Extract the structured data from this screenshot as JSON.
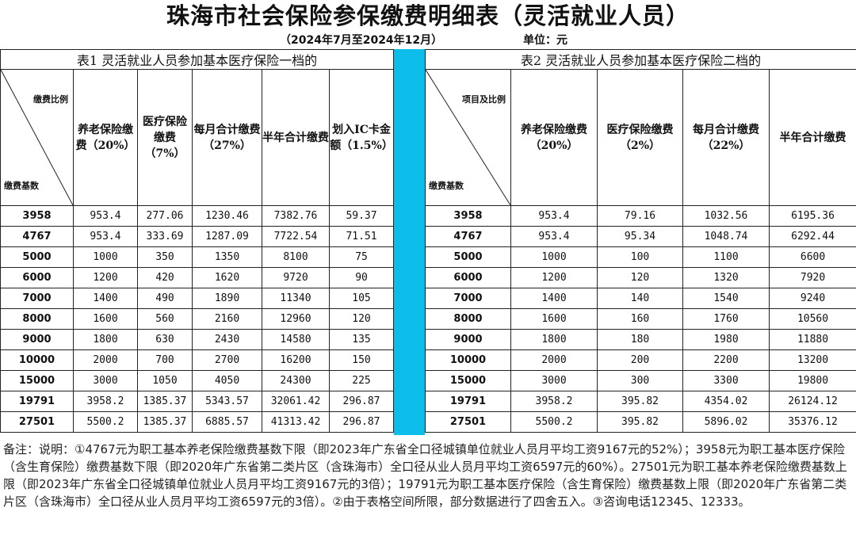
{
  "title": "珠海市社会保险参保缴费明细表（灵活就业人员）",
  "period": "（2024年7月至2024年12月）",
  "unit": "单位：元",
  "table1": {
    "caption": "表1 灵活就业人员参加基本医疗保险一档的",
    "corner_top": "缴费比例",
    "corner_bottom": "缴费基数",
    "headers": [
      "养老保险缴费（20%）",
      "医疗保险缴费（7%）",
      "每月合计缴费（27%）",
      "半年合计缴费",
      "划入IC卡金额（1.5%）"
    ],
    "rows": [
      [
        "3958",
        "953.4",
        "277.06",
        "1230.46",
        "7382.76",
        "59.37"
      ],
      [
        "4767",
        "953.4",
        "333.69",
        "1287.09",
        "7722.54",
        "71.51"
      ],
      [
        "5000",
        "1000",
        "350",
        "1350",
        "8100",
        "75"
      ],
      [
        "6000",
        "1200",
        "420",
        "1620",
        "9720",
        "90"
      ],
      [
        "7000",
        "1400",
        "490",
        "1890",
        "11340",
        "105"
      ],
      [
        "8000",
        "1600",
        "560",
        "2160",
        "12960",
        "120"
      ],
      [
        "9000",
        "1800",
        "630",
        "2430",
        "14580",
        "135"
      ],
      [
        "10000",
        "2000",
        "700",
        "2700",
        "16200",
        "150"
      ],
      [
        "15000",
        "3000",
        "1050",
        "4050",
        "24300",
        "225"
      ],
      [
        "19791",
        "3958.2",
        "1385.37",
        "5343.57",
        "32061.42",
        "296.87"
      ],
      [
        "27501",
        "5500.2",
        "1385.37",
        "6885.57",
        "41313.42",
        "296.87"
      ]
    ]
  },
  "table2": {
    "caption": "表2 灵活就业人员参加基本医疗保险二档的",
    "corner_top": "项目及比例",
    "corner_bottom": "缴费基数",
    "headers": [
      "养老保险缴费（20%）",
      "医疗保险缴费（2%）",
      "每月合计缴费（22%）",
      "半年合计缴费"
    ],
    "rows": [
      [
        "3958",
        "953.4",
        "79.16",
        "1032.56",
        "6195.36"
      ],
      [
        "4767",
        "953.4",
        "95.34",
        "1048.74",
        "6292.44"
      ],
      [
        "5000",
        "1000",
        "100",
        "1100",
        "6600"
      ],
      [
        "6000",
        "1200",
        "120",
        "1320",
        "7920"
      ],
      [
        "7000",
        "1400",
        "140",
        "1540",
        "9240"
      ],
      [
        "8000",
        "1600",
        "160",
        "1760",
        "10560"
      ],
      [
        "9000",
        "1800",
        "180",
        "1980",
        "11880"
      ],
      [
        "10000",
        "2000",
        "200",
        "2200",
        "13200"
      ],
      [
        "15000",
        "3000",
        "300",
        "3300",
        "19800"
      ],
      [
        "19791",
        "3958.2",
        "395.82",
        "4354.02",
        "26124.12"
      ],
      [
        "27501",
        "5500.2",
        "395.82",
        "5896.02",
        "35376.12"
      ]
    ]
  },
  "note": "备注：说明：①4767元为职工基本养老保险缴费基数下限（即2023年广东省全口径城镇单位就业人员月平均工资9167元的52%）；3958元为职工基本医疗保险（含生育保险）缴费基数下限（即2020年广东省第二类片区（含珠海市）全口径从业人员月平均工资6597元的60%）。27501元为职工基本养老保险缴费基数上限（即2023年广东省全口径城镇单位就业人员月平均工资9167元的3倍）；19791元为职工基本医疗保险（含生育保险）缴费基数上限（即2020年广东省第二类片区（含珠海市）全口径从业人员月平均工资6597元的3倍）。②由于表格空间所限，部分数据进行了四舍五入。③咨询电话12345、12333。",
  "colors": {
    "divider": "#0bbde8"
  }
}
